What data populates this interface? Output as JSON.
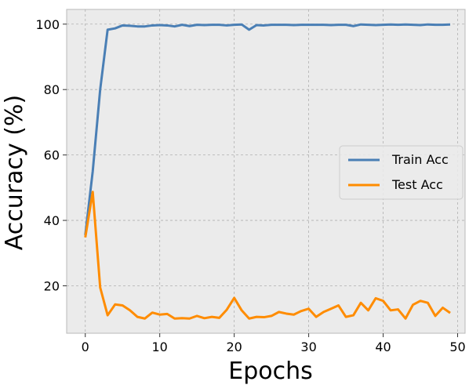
{
  "chart_data": {
    "type": "line",
    "xlabel": "Epochs",
    "ylabel": "Accuracy (%)",
    "xlim": [
      -2.5,
      51
    ],
    "ylim": [
      5.5,
      104.5
    ],
    "grid": true,
    "legend_position": "center-right",
    "x_ticks": [
      0,
      10,
      20,
      30,
      40,
      50
    ],
    "y_ticks": [
      20,
      40,
      60,
      80,
      100
    ],
    "x": [
      0,
      1,
      2,
      3,
      4,
      5,
      6,
      7,
      8,
      9,
      10,
      11,
      12,
      13,
      14,
      15,
      16,
      17,
      18,
      19,
      20,
      21,
      22,
      23,
      24,
      25,
      26,
      27,
      28,
      29,
      30,
      31,
      32,
      33,
      34,
      35,
      36,
      37,
      38,
      39,
      40,
      41,
      42,
      43,
      44,
      45,
      46,
      47,
      48,
      49
    ],
    "series": [
      {
        "name": "Train Acc",
        "color": "#4a7fb5",
        "values": [
          35.5,
          55,
          80,
          98.3,
          98.7,
          99.6,
          99.5,
          99.3,
          99.3,
          99.6,
          99.7,
          99.6,
          99.3,
          99.8,
          99.4,
          99.8,
          99.7,
          99.8,
          99.8,
          99.6,
          99.8,
          99.9,
          98.3,
          99.7,
          99.6,
          99.8,
          99.8,
          99.8,
          99.7,
          99.8,
          99.8,
          99.8,
          99.8,
          99.7,
          99.8,
          99.8,
          99.4,
          99.9,
          99.8,
          99.7,
          99.8,
          99.9,
          99.8,
          99.9,
          99.8,
          99.7,
          99.9,
          99.8,
          99.8,
          99.9
        ]
      },
      {
        "name": "Test Acc",
        "color": "#ff8c00",
        "values": [
          34.8,
          48.7,
          19.5,
          11,
          14.3,
          14,
          12.5,
          10.5,
          10,
          11.8,
          11.2,
          11.4,
          10,
          10.1,
          10,
          10.8,
          10.1,
          10.5,
          10.2,
          12.7,
          16.3,
          12.5,
          10,
          10.5,
          10.4,
          10.8,
          12,
          11.5,
          11.2,
          12.3,
          13,
          10.5,
          12,
          13,
          14,
          10.5,
          11,
          14.8,
          12.5,
          16.2,
          15.4,
          12.5,
          12.8,
          10,
          14.2,
          15.4,
          14.8,
          10.8,
          13.3,
          11.7
        ]
      }
    ]
  }
}
